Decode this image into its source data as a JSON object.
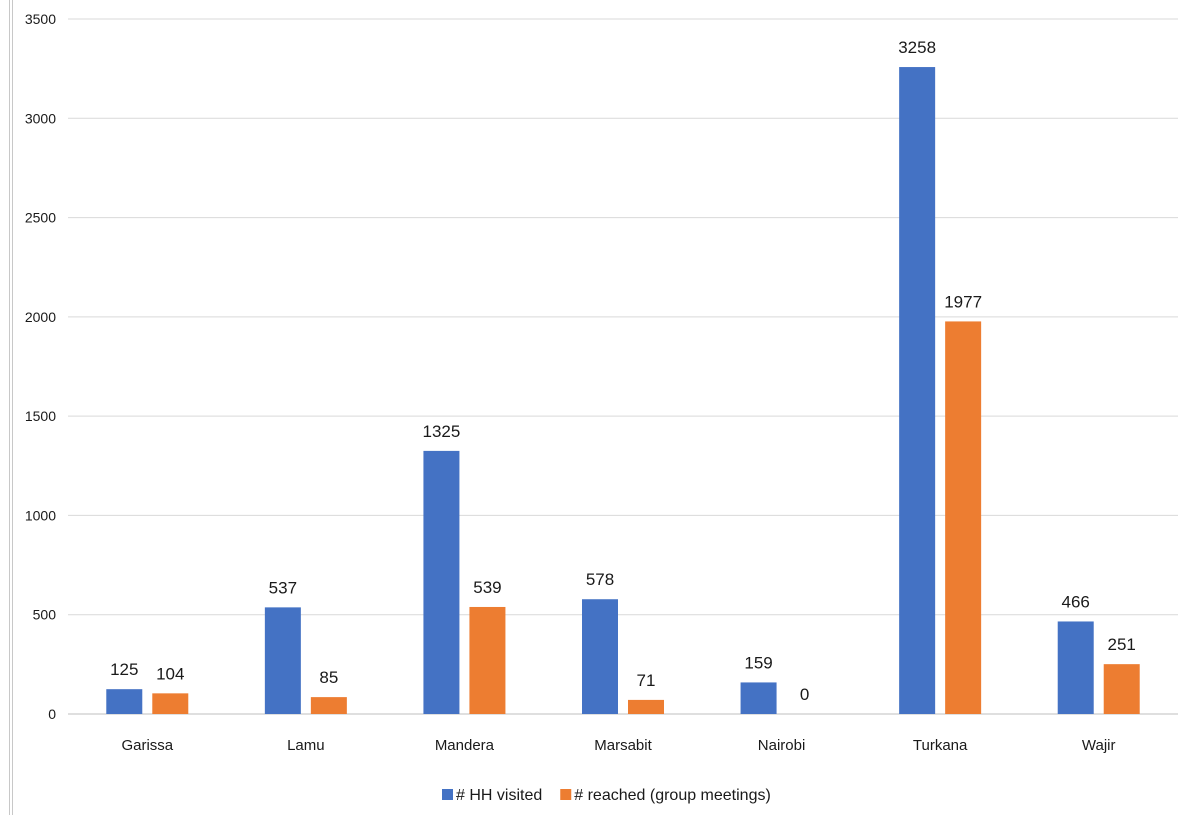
{
  "chart_data": {
    "type": "bar",
    "categories": [
      "Garissa",
      "Lamu",
      "Mandera",
      "Marsabit",
      "Nairobi",
      "Turkana",
      "Wajir"
    ],
    "series": [
      {
        "name": "# HH visited",
        "color": "#4472C4",
        "values": [
          125,
          537,
          1325,
          578,
          159,
          3258,
          466
        ]
      },
      {
        "name": "# reached (group meetings)",
        "color": "#ED7D31",
        "values": [
          104,
          85,
          539,
          71,
          0,
          1977,
          251
        ]
      }
    ],
    "yticks": [
      "0",
      "500",
      "1000",
      "1500",
      "2000",
      "2500",
      "3000",
      "3500"
    ],
    "ylim": [
      0,
      3500
    ],
    "title": "",
    "xlabel": "",
    "ylabel": "",
    "grid": true,
    "legend_position": "bottom",
    "data_labels": true
  }
}
